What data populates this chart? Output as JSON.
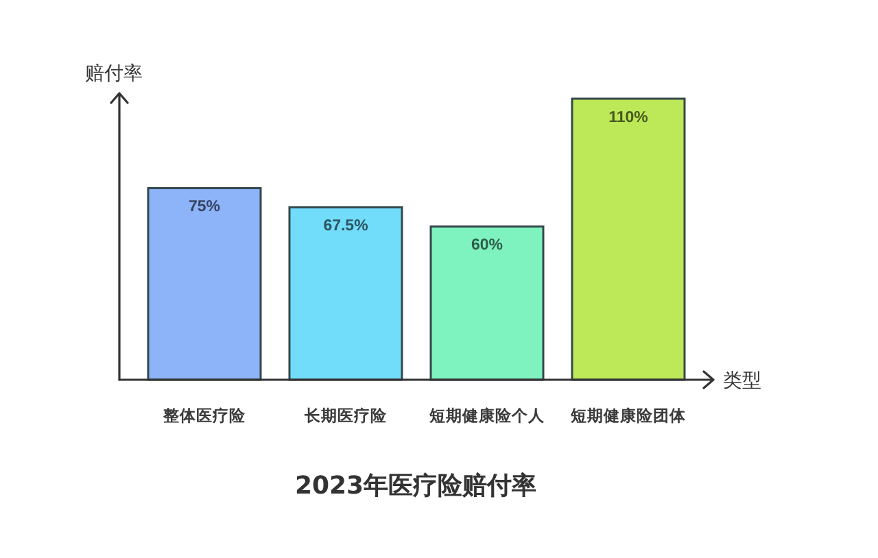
{
  "chart_data": {
    "type": "bar",
    "title": "2023年医疗险赔付率",
    "xlabel": "类型",
    "ylabel": "赔付率",
    "categories": [
      "整体医疗险",
      "长期医疗险",
      "短期健康险个人",
      "短期健康险团体"
    ],
    "values": [
      75,
      67.5,
      60,
      110
    ],
    "colors": [
      "#8db3f9",
      "#72dcfb",
      "#7ef3c0",
      "#bde857"
    ],
    "value_labels": [
      "75%",
      "67.5%",
      "60%",
      "110%"
    ]
  }
}
